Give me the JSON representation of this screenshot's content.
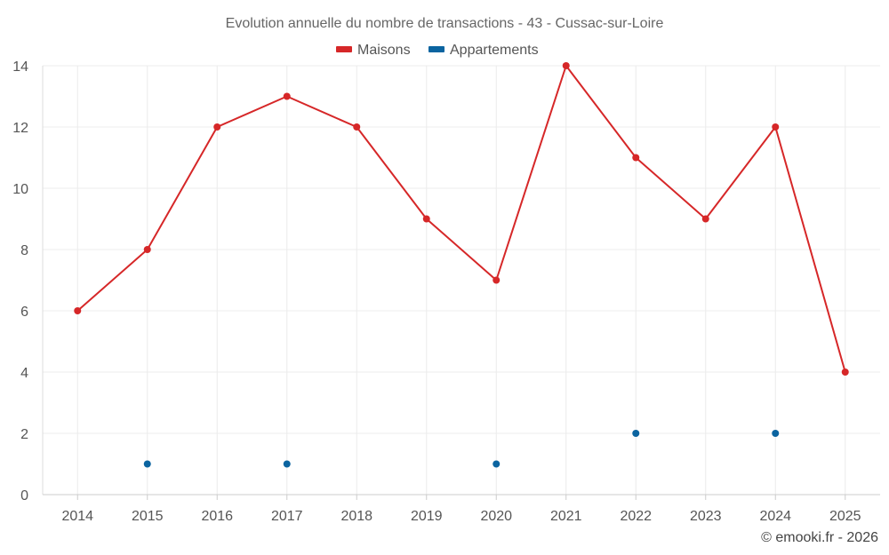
{
  "chart_data": {
    "type": "line",
    "title": "Evolution annuelle du nombre de transactions - 43 - Cussac-sur-Loire",
    "categories": [
      "2014",
      "2015",
      "2016",
      "2017",
      "2018",
      "2019",
      "2020",
      "2021",
      "2022",
      "2023",
      "2024",
      "2025"
    ],
    "ylim": [
      0,
      14
    ],
    "yticks": [
      0,
      2,
      4,
      6,
      8,
      10,
      12,
      14
    ],
    "grid": true,
    "legend_position": "top-center",
    "series": [
      {
        "name": "Maisons",
        "color": "#d62728",
        "line": true,
        "values": [
          6,
          8,
          12,
          13,
          12,
          9,
          7,
          14,
          11,
          9,
          12,
          4
        ]
      },
      {
        "name": "Appartements",
        "color": "#0b64a0",
        "line": false,
        "values": [
          null,
          1,
          null,
          1,
          null,
          null,
          1,
          null,
          2,
          null,
          2,
          null
        ]
      }
    ],
    "credit": "© emooki.fr - 2026"
  }
}
